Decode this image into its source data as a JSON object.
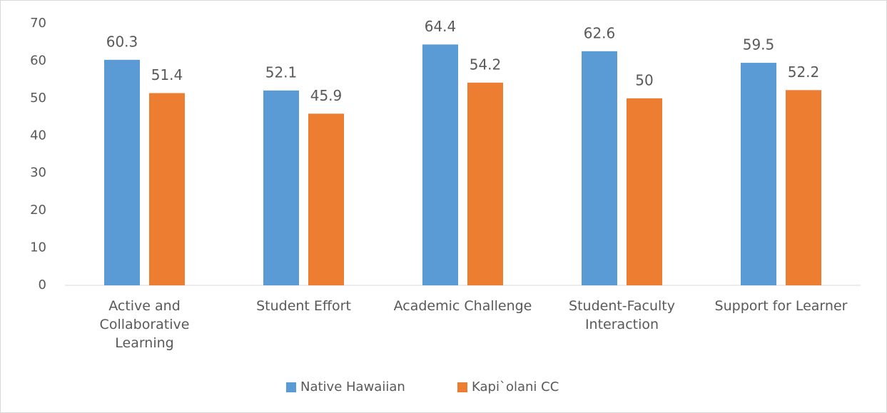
{
  "chart_data": {
    "type": "bar",
    "categories": [
      "Active and Collaborative Learning",
      "Student Effort",
      "Academic Challenge",
      "Student-Faculty Interaction",
      "Support for Learner"
    ],
    "series": [
      {
        "name": "Native Hawaiian",
        "color": "#5b9bd5",
        "values": [
          60.3,
          52.1,
          64.4,
          62.6,
          59.5
        ]
      },
      {
        "name": "Kapi`olani CC",
        "color": "#ed7d31",
        "values": [
          51.4,
          45.9,
          54.2,
          50,
          52.2
        ]
      }
    ],
    "ylim": [
      0,
      70
    ],
    "yticks": [
      0,
      10,
      20,
      30,
      40,
      50,
      60,
      70
    ],
    "grid": false,
    "legend": "bottom"
  }
}
